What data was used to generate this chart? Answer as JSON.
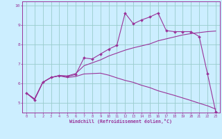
{
  "xlabel": "Windchill (Refroidissement éolien,°C)",
  "bg_color": "#cceeff",
  "grid_color": "#99cccc",
  "line_color": "#993399",
  "xlim": [
    -0.5,
    23.5
  ],
  "ylim": [
    4.5,
    10.2
  ],
  "xticks": [
    0,
    1,
    2,
    3,
    4,
    5,
    6,
    7,
    8,
    9,
    10,
    11,
    12,
    13,
    14,
    15,
    16,
    17,
    18,
    19,
    20,
    21,
    22,
    23
  ],
  "yticks": [
    5,
    6,
    7,
    8,
    9,
    10
  ],
  "curve1_x": [
    0,
    1,
    2,
    3,
    4,
    5,
    6,
    7,
    8,
    9,
    10,
    11,
    12,
    13,
    14,
    15,
    16,
    17,
    18,
    19,
    20,
    21,
    22,
    23
  ],
  "curve1_y": [
    5.5,
    5.15,
    6.05,
    6.3,
    6.4,
    6.35,
    6.45,
    7.3,
    7.25,
    7.5,
    7.75,
    7.95,
    9.6,
    9.05,
    9.25,
    9.4,
    9.6,
    8.7,
    8.65,
    8.65,
    8.65,
    8.4,
    6.5,
    4.55
  ],
  "curve2_x": [
    0,
    1,
    2,
    3,
    4,
    5,
    6,
    7,
    8,
    9,
    10,
    11,
    12,
    13,
    14,
    15,
    16,
    17,
    18,
    19,
    20,
    21,
    22,
    23
  ],
  "curve2_y": [
    5.5,
    5.2,
    6.05,
    6.3,
    6.4,
    6.38,
    6.5,
    6.9,
    7.05,
    7.2,
    7.4,
    7.55,
    7.7,
    7.82,
    7.92,
    8.02,
    8.18,
    8.28,
    8.38,
    8.48,
    8.55,
    8.6,
    8.65,
    8.68
  ],
  "curve3_x": [
    0,
    1,
    2,
    3,
    4,
    5,
    6,
    7,
    8,
    9,
    10,
    11,
    12,
    13,
    14,
    15,
    16,
    17,
    18,
    19,
    20,
    21,
    22,
    23
  ],
  "curve3_y": [
    5.5,
    5.2,
    6.05,
    6.3,
    6.38,
    6.3,
    6.35,
    6.48,
    6.5,
    6.52,
    6.42,
    6.28,
    6.15,
    6.05,
    5.9,
    5.78,
    5.62,
    5.5,
    5.38,
    5.25,
    5.12,
    4.98,
    4.85,
    4.68
  ]
}
